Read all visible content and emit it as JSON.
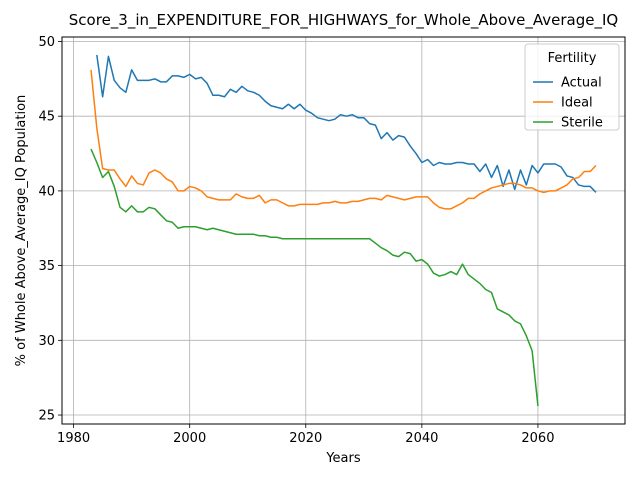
{
  "chart_data": {
    "type": "line",
    "title": "Score_3_in_EXPENDITURE_FOR_HIGHWAYS_for_Whole_Above_Average_IQ",
    "xlabel": "Years",
    "ylabel": "% of Whole Above_Average_IQ Population",
    "xlim": [
      1978,
      2075
    ],
    "ylim": [
      24.4,
      50.3
    ],
    "xticks": [
      1980,
      2000,
      2020,
      2040,
      2060
    ],
    "yticks": [
      25,
      30,
      35,
      40,
      45,
      50
    ],
    "grid": true,
    "legend": {
      "title": "Fertility",
      "placement": "top-right"
    },
    "colors": {
      "Actual": "#1f77b4",
      "Ideal": "#ff7f0e",
      "Sterile": "#2ca02c"
    },
    "series": [
      {
        "name": "Actual",
        "x": [
          1984,
          1985,
          1986,
          1987,
          1988,
          1989,
          1990,
          1991,
          1992,
          1993,
          1994,
          1995,
          1996,
          1997,
          1998,
          1999,
          2000,
          2001,
          2002,
          2003,
          2004,
          2005,
          2006,
          2007,
          2008,
          2009,
          2010,
          2011,
          2012,
          2013,
          2014,
          2015,
          2016,
          2017,
          2018,
          2019,
          2020,
          2021,
          2022,
          2023,
          2024,
          2025,
          2026,
          2027,
          2028,
          2029,
          2030,
          2031,
          2032,
          2033,
          2034,
          2035,
          2036,
          2037,
          2038,
          2039,
          2040,
          2041,
          2042,
          2043,
          2044,
          2045,
          2046,
          2047,
          2048,
          2049,
          2050,
          2051,
          2052,
          2053,
          2054,
          2055,
          2056,
          2057,
          2058,
          2059,
          2060,
          2061,
          2062,
          2063,
          2064,
          2065,
          2066,
          2067,
          2068,
          2069,
          2070
        ],
        "values": [
          49.1,
          46.3,
          49.0,
          47.4,
          46.9,
          46.6,
          48.1,
          47.4,
          47.4,
          47.4,
          47.5,
          47.3,
          47.3,
          47.7,
          47.7,
          47.6,
          47.8,
          47.5,
          47.6,
          47.2,
          46.4,
          46.4,
          46.3,
          46.8,
          46.6,
          47.0,
          46.7,
          46.6,
          46.4,
          46.0,
          45.7,
          45.6,
          45.5,
          45.8,
          45.5,
          45.8,
          45.4,
          45.2,
          44.9,
          44.8,
          44.7,
          44.8,
          45.1,
          45.0,
          45.1,
          44.9,
          44.9,
          44.5,
          44.4,
          43.5,
          43.9,
          43.4,
          43.7,
          43.6,
          43.0,
          42.5,
          41.9,
          42.1,
          41.7,
          41.9,
          41.8,
          41.8,
          41.9,
          41.9,
          41.8,
          41.8,
          41.3,
          41.8,
          40.9,
          41.7,
          40.3,
          41.4,
          40.1,
          41.4,
          40.4,
          41.7,
          41.2,
          41.8,
          41.8,
          41.8,
          41.6,
          41.0,
          40.9,
          40.4,
          40.3,
          40.3,
          39.9
        ]
      },
      {
        "name": "Ideal",
        "x": [
          1983,
          1984,
          1985,
          1986,
          1987,
          1988,
          1989,
          1990,
          1991,
          1992,
          1993,
          1994,
          1995,
          1996,
          1997,
          1998,
          1999,
          2000,
          2001,
          2002,
          2003,
          2004,
          2005,
          2006,
          2007,
          2008,
          2009,
          2010,
          2011,
          2012,
          2013,
          2014,
          2015,
          2016,
          2017,
          2018,
          2019,
          2020,
          2021,
          2022,
          2023,
          2024,
          2025,
          2026,
          2027,
          2028,
          2029,
          2030,
          2031,
          2032,
          2033,
          2034,
          2035,
          2036,
          2037,
          2038,
          2039,
          2040,
          2041,
          2042,
          2043,
          2044,
          2045,
          2046,
          2047,
          2048,
          2049,
          2050,
          2051,
          2052,
          2053,
          2054,
          2055,
          2056,
          2057,
          2058,
          2059,
          2060,
          2061,
          2062,
          2063,
          2064,
          2065,
          2066,
          2067,
          2068,
          2069,
          2070
        ],
        "values": [
          48.1,
          44.2,
          41.5,
          41.4,
          41.4,
          40.8,
          40.3,
          41.0,
          40.5,
          40.4,
          41.2,
          41.4,
          41.2,
          40.8,
          40.6,
          40.0,
          40.0,
          40.3,
          40.2,
          40.0,
          39.6,
          39.5,
          39.4,
          39.4,
          39.4,
          39.8,
          39.6,
          39.5,
          39.5,
          39.7,
          39.2,
          39.4,
          39.4,
          39.2,
          39.0,
          39.0,
          39.1,
          39.1,
          39.1,
          39.1,
          39.2,
          39.2,
          39.3,
          39.2,
          39.2,
          39.3,
          39.3,
          39.4,
          39.5,
          39.5,
          39.4,
          39.7,
          39.6,
          39.5,
          39.4,
          39.5,
          39.6,
          39.6,
          39.6,
          39.2,
          38.9,
          38.8,
          38.8,
          39.0,
          39.2,
          39.5,
          39.5,
          39.8,
          40.0,
          40.2,
          40.3,
          40.4,
          40.5,
          40.5,
          40.4,
          40.2,
          40.2,
          40.0,
          39.9,
          40.0,
          40.0,
          40.2,
          40.4,
          40.8,
          40.9,
          41.3,
          41.3,
          41.7
        ]
      },
      {
        "name": "Sterile",
        "x": [
          1983,
          1984,
          1985,
          1986,
          1987,
          1988,
          1989,
          1990,
          1991,
          1992,
          1993,
          1994,
          1995,
          1996,
          1997,
          1998,
          1999,
          2000,
          2001,
          2002,
          2003,
          2004,
          2005,
          2006,
          2007,
          2008,
          2009,
          2010,
          2011,
          2012,
          2013,
          2014,
          2015,
          2016,
          2017,
          2018,
          2019,
          2020,
          2021,
          2022,
          2023,
          2024,
          2025,
          2026,
          2027,
          2028,
          2029,
          2030,
          2031,
          2032,
          2033,
          2034,
          2035,
          2036,
          2037,
          2038,
          2039,
          2040,
          2041,
          2042,
          2043,
          2044,
          2045,
          2046,
          2047,
          2048,
          2049,
          2050,
          2051,
          2052,
          2053,
          2054,
          2055,
          2056,
          2057,
          2058,
          2059,
          2060
        ],
        "values": [
          42.8,
          41.9,
          40.9,
          41.3,
          40.3,
          38.9,
          38.6,
          39.0,
          38.6,
          38.6,
          38.9,
          38.8,
          38.4,
          38.0,
          37.9,
          37.5,
          37.6,
          37.6,
          37.6,
          37.5,
          37.4,
          37.5,
          37.4,
          37.3,
          37.2,
          37.1,
          37.1,
          37.1,
          37.1,
          37.0,
          37.0,
          36.9,
          36.9,
          36.8,
          36.8,
          36.8,
          36.8,
          36.8,
          36.8,
          36.8,
          36.8,
          36.8,
          36.8,
          36.8,
          36.8,
          36.8,
          36.8,
          36.8,
          36.8,
          36.5,
          36.2,
          36.0,
          35.7,
          35.6,
          35.9,
          35.8,
          35.3,
          35.4,
          35.1,
          34.5,
          34.3,
          34.4,
          34.6,
          34.4,
          35.1,
          34.4,
          34.1,
          33.8,
          33.4,
          33.2,
          32.1,
          31.9,
          31.7,
          31.3,
          31.1,
          30.3,
          29.3,
          25.6
        ]
      }
    ]
  }
}
